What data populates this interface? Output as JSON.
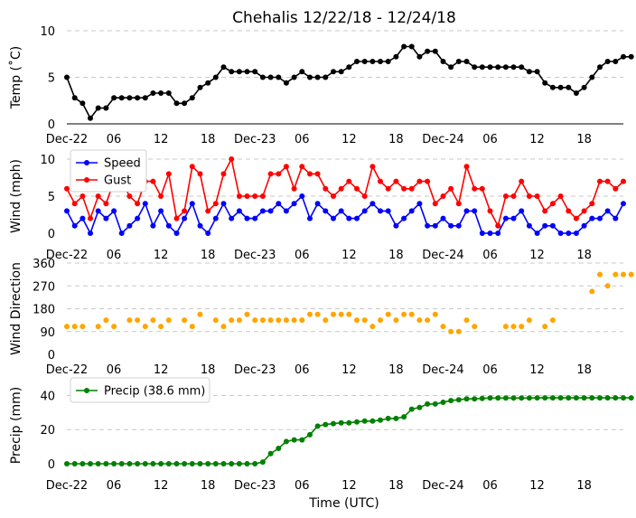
{
  "title": "Chehalis 12/22/18 - 12/24/18",
  "xlabel": "Time (UTC)",
  "x_tick_labels": [
    "Dec-22",
    "06",
    "12",
    "18",
    "Dec-23",
    "06",
    "12",
    "18",
    "Dec-24",
    "06",
    "12",
    "18"
  ],
  "x_tick_hours": [
    0,
    6,
    12,
    18,
    24,
    30,
    36,
    42,
    48,
    54,
    60,
    66
  ],
  "x_range_hours": [
    0,
    71
  ],
  "colors": {
    "temp": "#000000",
    "speed": "#0000ff",
    "gust": "#ff0000",
    "direction": "#ffa500",
    "precip": "#008000",
    "grid": "#c8c8c8"
  },
  "chart_data": [
    {
      "type": "line",
      "ylabel": "Temp (˚C)",
      "ylim": [
        0,
        10
      ],
      "yticks": [
        0,
        5,
        10
      ],
      "grid": true,
      "series": [
        {
          "key": "temp",
          "x_hours_from_dec22_00utc": "hourly",
          "values": [
            5.0,
            2.8,
            2.2,
            0.6,
            1.7,
            1.7,
            2.8,
            2.8,
            2.8,
            2.8,
            2.8,
            3.3,
            3.3,
            3.3,
            2.2,
            2.2,
            2.8,
            3.9,
            4.4,
            5.0,
            6.1,
            5.6,
            5.6,
            5.6,
            5.6,
            5.0,
            5.0,
            5.0,
            4.4,
            5.0,
            5.6,
            5.0,
            5.0,
            5.0,
            5.6,
            5.6,
            6.1,
            6.7,
            6.7,
            6.7,
            6.7,
            6.7,
            7.2,
            8.3,
            8.3,
            7.2,
            7.8,
            7.8,
            6.7,
            6.1,
            6.7,
            6.7,
            6.1,
            6.1,
            6.1,
            6.1,
            6.1,
            6.1,
            6.1,
            5.6,
            5.6,
            4.4,
            3.9,
            3.9,
            3.9,
            3.3,
            3.9,
            5.0,
            6.1,
            6.7,
            6.7,
            7.2,
            7.2
          ]
        }
      ]
    },
    {
      "type": "line",
      "ylabel": "Wind (mph)",
      "ylim": [
        0,
        10
      ],
      "yticks": [
        0,
        5,
        10
      ],
      "grid": true,
      "legend": "top-left",
      "series": [
        {
          "key": "speed",
          "name": "Speed",
          "values": [
            3,
            1,
            2,
            0,
            3,
            2,
            3,
            0,
            1,
            2,
            4,
            1,
            3,
            1,
            0,
            2,
            4,
            1,
            0,
            2,
            4,
            2,
            3,
            2,
            2,
            3,
            3,
            4,
            3,
            4,
            5,
            2,
            4,
            3,
            2,
            3,
            2,
            2,
            3,
            4,
            3,
            3,
            1,
            2,
            3,
            4,
            1,
            1,
            2,
            1,
            1,
            3,
            3,
            0,
            0,
            0,
            2,
            2,
            3,
            1,
            0,
            1,
            1,
            0,
            0,
            0,
            1,
            2,
            2,
            3,
            2,
            4
          ]
        },
        {
          "key": "gust",
          "name": "Gust",
          "values": [
            6,
            4,
            5,
            2,
            5,
            4,
            7,
            7,
            5,
            4,
            7,
            7,
            5,
            8,
            2,
            3,
            9,
            8,
            3,
            4,
            8,
            10,
            5,
            5,
            5,
            5,
            8,
            8,
            9,
            6,
            9,
            8,
            8,
            6,
            5,
            6,
            7,
            6,
            5,
            9,
            7,
            6,
            7,
            6,
            6,
            7,
            7,
            4,
            5,
            6,
            4,
            9,
            6,
            6,
            3,
            1,
            5,
            5,
            7,
            5,
            5,
            3,
            4,
            5,
            3,
            2,
            3,
            4,
            7,
            7,
            6,
            7
          ]
        }
      ]
    },
    {
      "type": "scatter",
      "ylabel": "Wind Direction",
      "ylim": [
        0,
        360
      ],
      "yticks": [
        0,
        90,
        180,
        270,
        360
      ],
      "grid": true,
      "series": [
        {
          "key": "direction",
          "values": [
            110,
            110,
            110,
            null,
            110,
            135,
            110,
            null,
            135,
            135,
            110,
            135,
            110,
            135,
            null,
            135,
            110,
            158,
            null,
            135,
            110,
            135,
            135,
            158,
            135,
            135,
            135,
            135,
            135,
            135,
            135,
            158,
            158,
            135,
            158,
            158,
            158,
            135,
            135,
            110,
            135,
            158,
            135,
            158,
            158,
            135,
            135,
            158,
            110,
            90,
            90,
            135,
            110,
            null,
            null,
            null,
            110,
            110,
            110,
            135,
            null,
            110,
            135,
            null,
            null,
            null,
            null,
            248,
            315,
            270,
            315,
            315,
            315
          ]
        }
      ]
    },
    {
      "type": "line",
      "ylabel": "Precip (mm)",
      "ylim": [
        0,
        45
      ],
      "yticks": [
        0,
        20,
        40
      ],
      "grid": true,
      "legend": "top-left",
      "series": [
        {
          "key": "precip",
          "name": "Precip (38.6 mm)",
          "values": [
            0,
            0,
            0,
            0,
            0,
            0,
            0,
            0,
            0,
            0,
            0,
            0,
            0,
            0,
            0,
            0,
            0,
            0,
            0,
            0,
            0,
            0,
            0,
            0,
            0,
            1,
            6,
            9,
            13,
            14,
            14,
            17,
            22,
            23,
            23.5,
            24,
            24,
            24.5,
            25,
            25,
            25.5,
            26.5,
            26.5,
            27.5,
            32,
            33,
            35,
            35,
            36,
            37,
            37.5,
            38,
            38,
            38.3,
            38.5,
            38.5,
            38.5,
            38.5,
            38.5,
            38.5,
            38.6,
            38.6,
            38.6,
            38.6,
            38.6,
            38.6,
            38.6,
            38.6,
            38.6,
            38.6,
            38.6,
            38.6,
            38.6
          ]
        }
      ]
    }
  ]
}
